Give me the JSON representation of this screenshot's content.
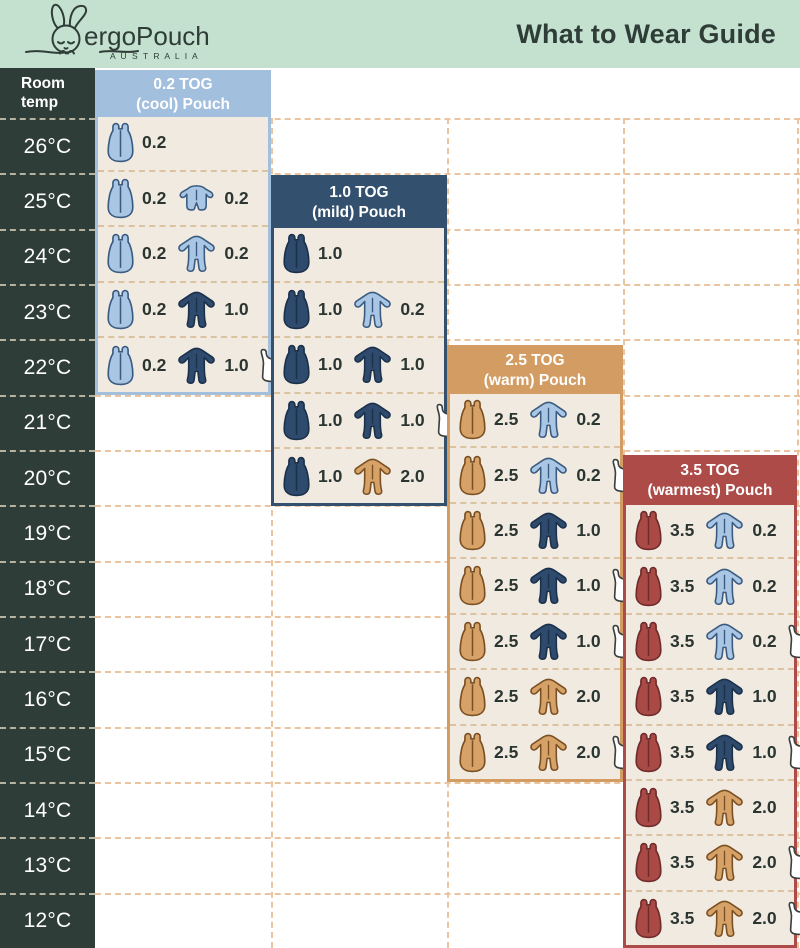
{
  "header": {
    "brand": "ergoPouch",
    "brand_sub": "A U S T R A L I A",
    "title": "What to Wear Guide"
  },
  "temp_column": {
    "header": "Room temp",
    "temps": [
      "26°C",
      "25°C",
      "24°C",
      "23°C",
      "22°C",
      "21°C",
      "20°C",
      "19°C",
      "18°C",
      "17°C",
      "16°C",
      "15°C",
      "14°C",
      "13°C",
      "12°C"
    ]
  },
  "colors": {
    "mint": "#c4e1d0",
    "charcoal": "#2f3d38",
    "cream": "#f1eae0",
    "grid_dash": "#eac49f",
    "panel_dash": "#ddc2a2",
    "lightblue": {
      "fill": "#a9c7e5",
      "stroke": "#3a5a80",
      "header": "#a3bfde"
    },
    "navy": {
      "fill": "#2e4a6c",
      "stroke": "#1b304b",
      "header": "#33516f"
    },
    "tan": {
      "fill": "#d7a268",
      "stroke": "#7a4f22",
      "header": "#d39c62"
    },
    "red": {
      "fill": "#a94a47",
      "stroke": "#6e2b2a",
      "header": "#ad4b48"
    },
    "white": {
      "fill": "#ffffff",
      "stroke": "#3c413e",
      "header": "#ffffff"
    }
  },
  "panels": [
    {
      "title_line1": "0.2 TOG",
      "title_line2": "(cool) Pouch",
      "header_color": "#a3bfde",
      "rows": [
        {
          "temp": "26°C",
          "items": [
            {
              "icon": "pouch",
              "color": "lightblue",
              "value": "0.2"
            }
          ]
        },
        {
          "temp": "25°C",
          "items": [
            {
              "icon": "pouch",
              "color": "lightblue",
              "value": "0.2"
            },
            {
              "icon": "romper",
              "color": "lightblue",
              "value": "0.2"
            }
          ]
        },
        {
          "temp": "24°C",
          "items": [
            {
              "icon": "pouch",
              "color": "lightblue",
              "value": "0.2"
            },
            {
              "icon": "sleepsuit",
              "color": "lightblue",
              "value": "0.2"
            }
          ]
        },
        {
          "temp": "23°C",
          "items": [
            {
              "icon": "pouch",
              "color": "lightblue",
              "value": "0.2"
            },
            {
              "icon": "sleepsuit",
              "color": "navy",
              "value": "1.0"
            }
          ]
        },
        {
          "temp": "22°C",
          "items": [
            {
              "icon": "pouch",
              "color": "lightblue",
              "value": "0.2"
            },
            {
              "icon": "sleepsuit",
              "color": "navy",
              "value": "1.0"
            },
            {
              "icon": "singlet",
              "color": "white",
              "value": ""
            }
          ]
        }
      ]
    },
    {
      "title_line1": "1.0 TOG",
      "title_line2": "(mild) Pouch",
      "header_color": "#33516f",
      "rows": [
        {
          "temp": "24°C",
          "items": [
            {
              "icon": "pouch",
              "color": "navy",
              "value": "1.0"
            }
          ]
        },
        {
          "temp": "23°C",
          "items": [
            {
              "icon": "pouch",
              "color": "navy",
              "value": "1.0"
            },
            {
              "icon": "sleepsuit",
              "color": "lightblue",
              "value": "0.2"
            }
          ]
        },
        {
          "temp": "22°C",
          "items": [
            {
              "icon": "pouch",
              "color": "navy",
              "value": "1.0"
            },
            {
              "icon": "sleepsuit",
              "color": "navy",
              "value": "1.0"
            }
          ]
        },
        {
          "temp": "21°C",
          "items": [
            {
              "icon": "pouch",
              "color": "navy",
              "value": "1.0"
            },
            {
              "icon": "sleepsuit",
              "color": "navy",
              "value": "1.0"
            },
            {
              "icon": "singlet",
              "color": "white",
              "value": ""
            }
          ]
        },
        {
          "temp": "20°C",
          "items": [
            {
              "icon": "pouch",
              "color": "navy",
              "value": "1.0"
            },
            {
              "icon": "sleepsuit",
              "color": "tan",
              "value": "2.0"
            }
          ]
        }
      ]
    },
    {
      "title_line1": "2.5 TOG",
      "title_line2": "(warm) Pouch",
      "header_color": "#d39c62",
      "rows": [
        {
          "temp": "21°C",
          "items": [
            {
              "icon": "pouch",
              "color": "tan",
              "value": "2.5"
            },
            {
              "icon": "sleepsuit",
              "color": "lightblue",
              "value": "0.2"
            }
          ]
        },
        {
          "temp": "20°C",
          "items": [
            {
              "icon": "pouch",
              "color": "tan",
              "value": "2.5"
            },
            {
              "icon": "sleepsuit",
              "color": "lightblue",
              "value": "0.2"
            },
            {
              "icon": "singlet",
              "color": "white",
              "value": ""
            }
          ]
        },
        {
          "temp": "19°C",
          "items": [
            {
              "icon": "pouch",
              "color": "tan",
              "value": "2.5"
            },
            {
              "icon": "sleepsuit",
              "color": "navy",
              "value": "1.0"
            }
          ]
        },
        {
          "temp": "18°C",
          "items": [
            {
              "icon": "pouch",
              "color": "tan",
              "value": "2.5"
            },
            {
              "icon": "sleepsuit",
              "color": "navy",
              "value": "1.0"
            },
            {
              "icon": "singlet",
              "color": "white",
              "value": ""
            }
          ]
        },
        {
          "temp": "17°C",
          "items": [
            {
              "icon": "pouch",
              "color": "tan",
              "value": "2.5"
            },
            {
              "icon": "sleepsuit",
              "color": "navy",
              "value": "1.0"
            },
            {
              "icon": "singlet",
              "color": "white",
              "value": ""
            }
          ]
        },
        {
          "temp": "16°C",
          "items": [
            {
              "icon": "pouch",
              "color": "tan",
              "value": "2.5"
            },
            {
              "icon": "sleepsuit",
              "color": "tan",
              "value": "2.0"
            }
          ]
        },
        {
          "temp": "15°C",
          "items": [
            {
              "icon": "pouch",
              "color": "tan",
              "value": "2.5"
            },
            {
              "icon": "sleepsuit",
              "color": "tan",
              "value": "2.0"
            },
            {
              "icon": "singlet",
              "color": "white",
              "value": ""
            }
          ]
        }
      ]
    },
    {
      "title_line1": "3.5 TOG",
      "title_line2": "(warmest) Pouch",
      "header_color": "#ad4b48",
      "rows": [
        {
          "temp": "19°C",
          "items": [
            {
              "icon": "pouch",
              "color": "red",
              "value": "3.5"
            },
            {
              "icon": "sleepsuit",
              "color": "lightblue",
              "value": "0.2"
            }
          ]
        },
        {
          "temp": "18°C",
          "items": [
            {
              "icon": "pouch",
              "color": "red",
              "value": "3.5"
            },
            {
              "icon": "sleepsuit",
              "color": "lightblue",
              "value": "0.2"
            }
          ]
        },
        {
          "temp": "17°C",
          "items": [
            {
              "icon": "pouch",
              "color": "red",
              "value": "3.5"
            },
            {
              "icon": "sleepsuit",
              "color": "lightblue",
              "value": "0.2"
            },
            {
              "icon": "singlet",
              "color": "white",
              "value": ""
            }
          ]
        },
        {
          "temp": "16°C",
          "items": [
            {
              "icon": "pouch",
              "color": "red",
              "value": "3.5"
            },
            {
              "icon": "sleepsuit",
              "color": "navy",
              "value": "1.0"
            }
          ]
        },
        {
          "temp": "15°C",
          "items": [
            {
              "icon": "pouch",
              "color": "red",
              "value": "3.5"
            },
            {
              "icon": "sleepsuit",
              "color": "navy",
              "value": "1.0"
            },
            {
              "icon": "singlet",
              "color": "white",
              "value": ""
            }
          ]
        },
        {
          "temp": "14°C",
          "items": [
            {
              "icon": "pouch",
              "color": "red",
              "value": "3.5"
            },
            {
              "icon": "sleepsuit",
              "color": "tan",
              "value": "2.0"
            }
          ]
        },
        {
          "temp": "13°C",
          "items": [
            {
              "icon": "pouch",
              "color": "red",
              "value": "3.5"
            },
            {
              "icon": "sleepsuit",
              "color": "tan",
              "value": "2.0"
            },
            {
              "icon": "singlet",
              "color": "white",
              "value": ""
            }
          ]
        },
        {
          "temp": "12°C",
          "items": [
            {
              "icon": "pouch",
              "color": "red",
              "value": "3.5"
            },
            {
              "icon": "sleepsuit",
              "color": "tan",
              "value": "2.0"
            },
            {
              "icon": "singlet",
              "color": "white",
              "value": ""
            }
          ]
        }
      ]
    }
  ],
  "chart_data": {
    "type": "table",
    "title": "What to Wear Guide",
    "columns": [
      "Room temp",
      "0.2 TOG (cool) Pouch",
      "1.0 TOG (mild) Pouch",
      "2.5 TOG (warm) Pouch",
      "3.5 TOG (warmest) Pouch"
    ],
    "rows": [
      [
        "26°C",
        "0.2 pouch",
        "",
        "",
        ""
      ],
      [
        "25°C",
        "0.2 pouch + 0.2 romper",
        "",
        "",
        ""
      ],
      [
        "24°C",
        "0.2 pouch + 0.2 sleepsuit",
        "1.0 pouch",
        "",
        ""
      ],
      [
        "23°C",
        "0.2 pouch + 1.0 sleepsuit",
        "1.0 pouch + 0.2 sleepsuit",
        "",
        ""
      ],
      [
        "22°C",
        "0.2 pouch + 1.0 sleepsuit + singlet",
        "1.0 pouch + 1.0 sleepsuit",
        "",
        ""
      ],
      [
        "21°C",
        "",
        "1.0 pouch + 1.0 sleepsuit + singlet",
        "2.5 pouch + 0.2 sleepsuit",
        ""
      ],
      [
        "20°C",
        "",
        "1.0 pouch + 2.0 sleepsuit",
        "2.5 pouch + 0.2 sleepsuit + singlet",
        ""
      ],
      [
        "19°C",
        "",
        "",
        "2.5 pouch + 1.0 sleepsuit",
        "3.5 pouch + 0.2 sleepsuit"
      ],
      [
        "18°C",
        "",
        "",
        "2.5 pouch + 1.0 sleepsuit + singlet",
        "3.5 pouch + 0.2 sleepsuit"
      ],
      [
        "17°C",
        "",
        "",
        "2.5 pouch + 1.0 sleepsuit + singlet",
        "3.5 pouch + 0.2 sleepsuit + singlet"
      ],
      [
        "16°C",
        "",
        "",
        "2.5 pouch + 2.0 sleepsuit",
        "3.5 pouch + 1.0 sleepsuit"
      ],
      [
        "15°C",
        "",
        "",
        "2.5 pouch + 2.0 sleepsuit + singlet",
        "3.5 pouch + 1.0 sleepsuit + singlet"
      ],
      [
        "14°C",
        "",
        "",
        "",
        "3.5 pouch + 2.0 sleepsuit"
      ],
      [
        "13°C",
        "",
        "",
        "",
        "3.5 pouch + 2.0 sleepsuit + singlet"
      ],
      [
        "12°C",
        "",
        "",
        "",
        "3.5 pouch + 2.0 sleepsuit + singlet"
      ]
    ]
  }
}
